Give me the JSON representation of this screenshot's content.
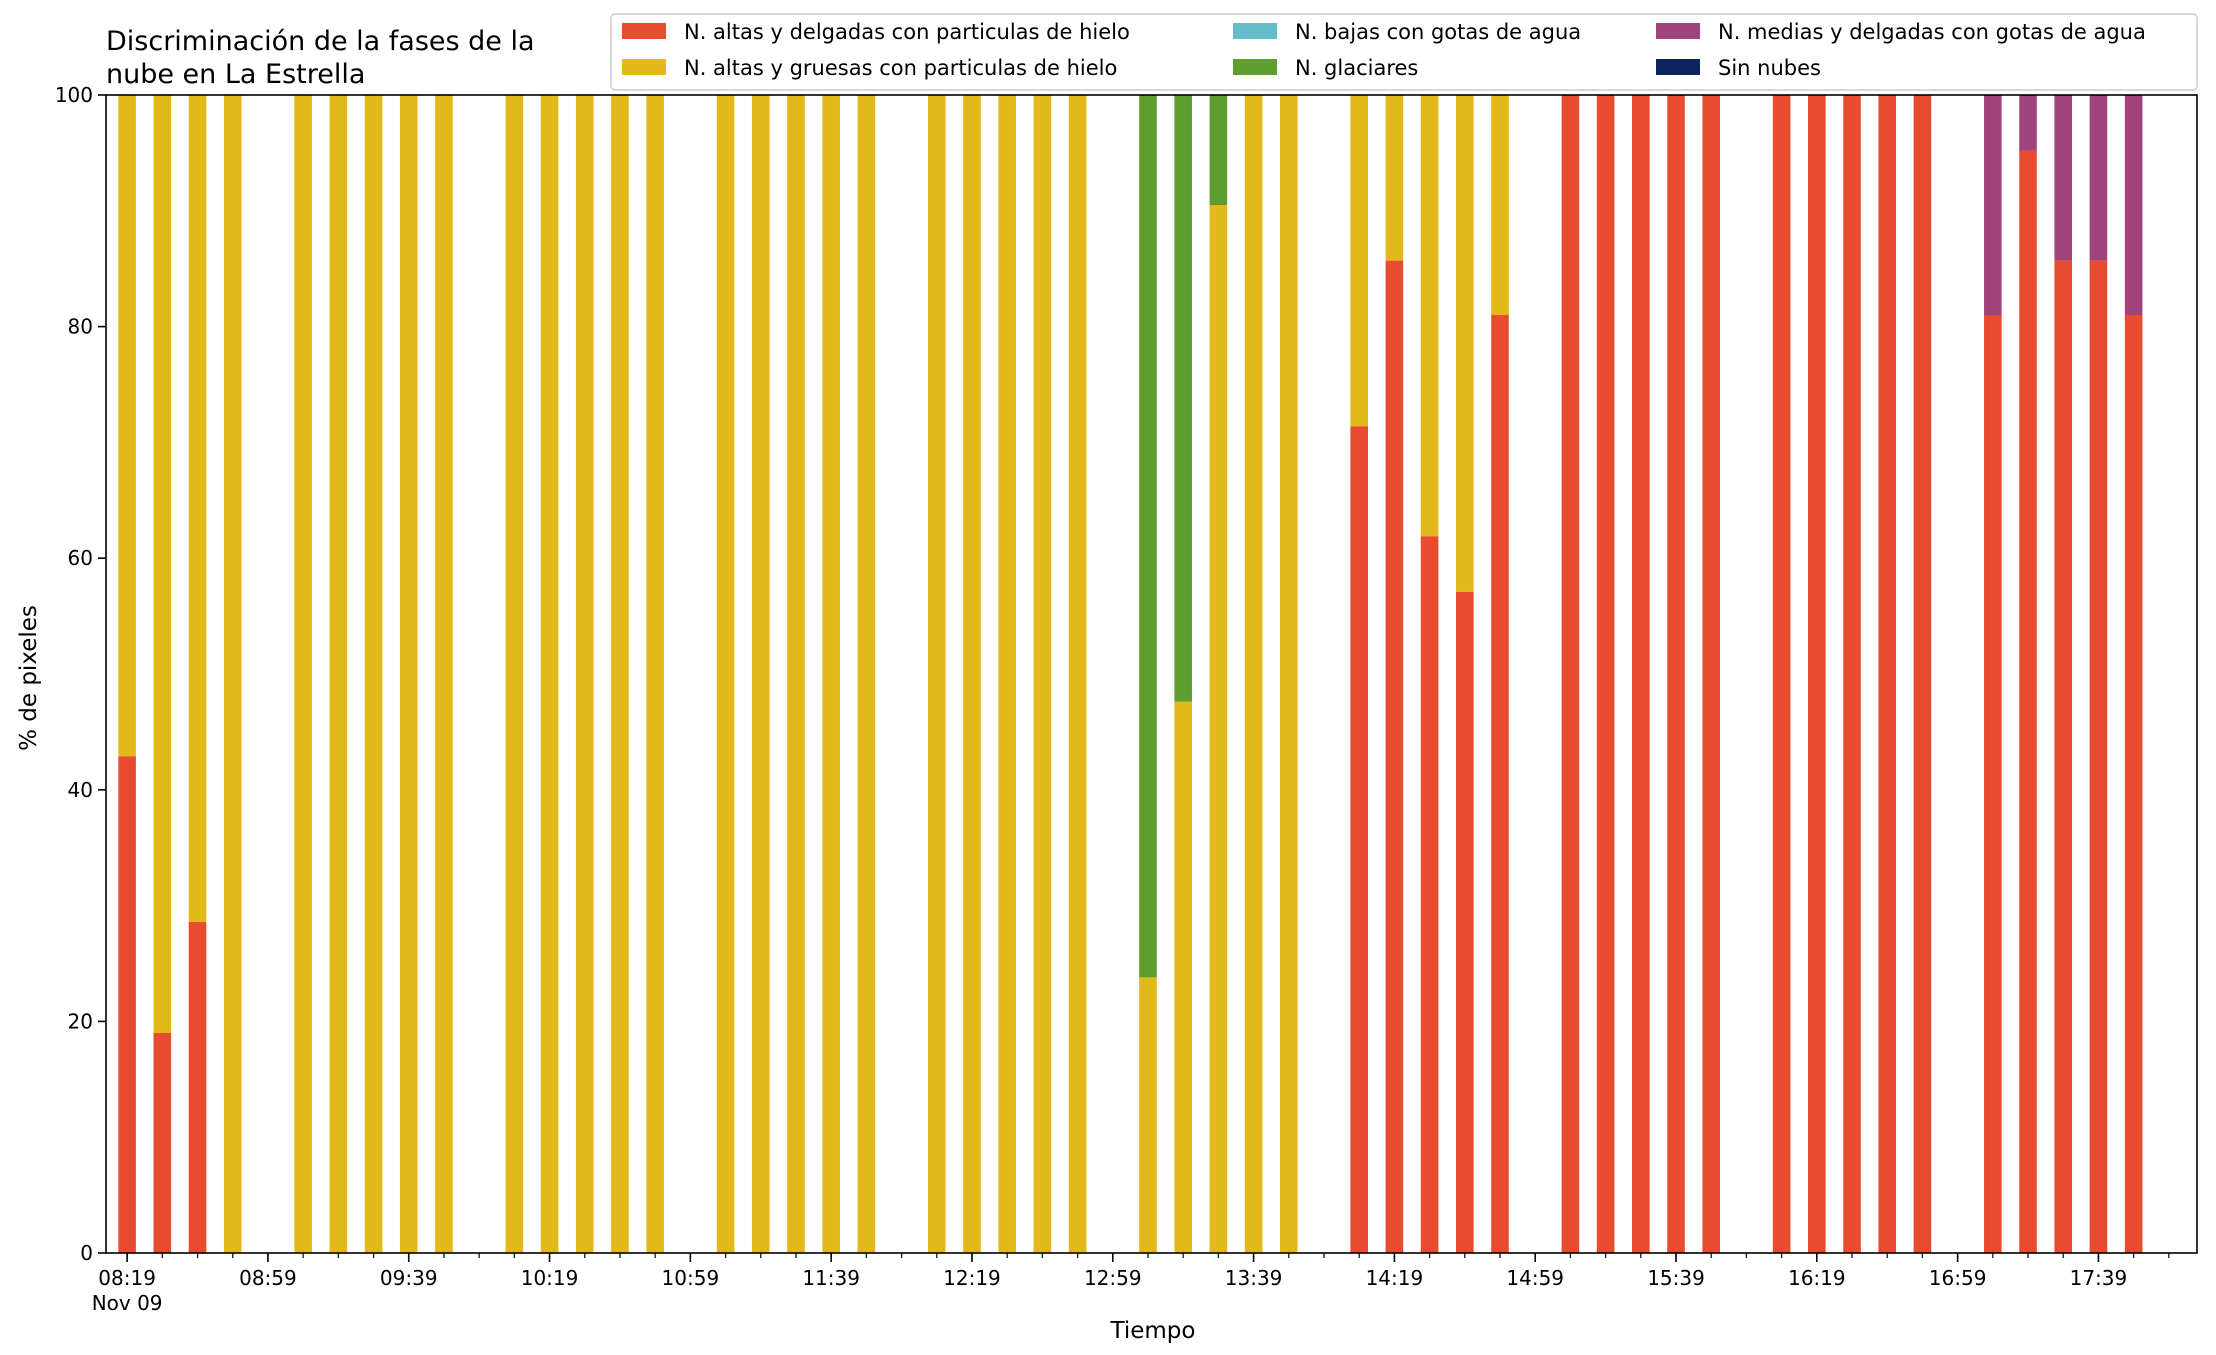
{
  "chart_data": {
    "type": "bar",
    "stacked": true,
    "title_lines": [
      "Discriminación de la fases de la",
      "nube en La Estrella"
    ],
    "xlabel": "Tiempo",
    "ylabel": "% de pixeles",
    "ylim": [
      0,
      100
    ],
    "yticks": [
      0,
      20,
      40,
      60,
      80,
      100
    ],
    "xtick_labels": [
      "08:19",
      "08:59",
      "09:39",
      "10:19",
      "10:59",
      "11:39",
      "12:19",
      "12:59",
      "13:39",
      "14:19",
      "14:59",
      "15:39",
      "16:19",
      "16:59",
      "17:39"
    ],
    "xtick_sublabel": "Nov 09",
    "x_start_time": "08:19",
    "time_step_minutes": 10,
    "grid": false,
    "legend_position": "top-right",
    "series": [
      {
        "name": "N. altas y delgadas con particulas de hielo",
        "color": "#e84c2e"
      },
      {
        "name": "N. altas y gruesas con particulas de hielo",
        "color": "#e3b81a"
      },
      {
        "name": "N. bajas con gotas de agua",
        "color": "#63bcc8"
      },
      {
        "name": "N. glaciares",
        "color": "#5f9e2e"
      },
      {
        "name": "N. medias y delgadas con gotas de agua",
        "color": "#a1437c"
      },
      {
        "name": "Sin nubes",
        "color": "#0b2460"
      }
    ],
    "bars": [
      {
        "time": "08:19",
        "values": [
          42.9,
          57.1,
          0,
          0,
          0,
          0
        ]
      },
      {
        "time": "08:29",
        "values": [
          19.0,
          81.0,
          0,
          0,
          0,
          0
        ]
      },
      {
        "time": "08:39",
        "values": [
          28.6,
          71.4,
          0,
          0,
          0,
          0
        ]
      },
      {
        "time": "08:49",
        "values": [
          0,
          100,
          0,
          0,
          0,
          0
        ]
      },
      {
        "time": "09:09",
        "values": [
          0,
          100,
          0,
          0,
          0,
          0
        ]
      },
      {
        "time": "09:19",
        "values": [
          0,
          100,
          0,
          0,
          0,
          0
        ]
      },
      {
        "time": "09:29",
        "values": [
          0,
          100,
          0,
          0,
          0,
          0
        ]
      },
      {
        "time": "09:39",
        "values": [
          0,
          100,
          0,
          0,
          0,
          0
        ]
      },
      {
        "time": "09:49",
        "values": [
          0,
          100,
          0,
          0,
          0,
          0
        ]
      },
      {
        "time": "10:09",
        "values": [
          0,
          100,
          0,
          0,
          0,
          0
        ]
      },
      {
        "time": "10:19",
        "values": [
          0,
          100,
          0,
          0,
          0,
          0
        ]
      },
      {
        "time": "10:29",
        "values": [
          0,
          100,
          0,
          0,
          0,
          0
        ]
      },
      {
        "time": "10:39",
        "values": [
          0,
          100,
          0,
          0,
          0,
          0
        ]
      },
      {
        "time": "10:49",
        "values": [
          0,
          100,
          0,
          0,
          0,
          0
        ]
      },
      {
        "time": "11:09",
        "values": [
          0,
          100,
          0,
          0,
          0,
          0
        ]
      },
      {
        "time": "11:19",
        "values": [
          0,
          100,
          0,
          0,
          0,
          0
        ]
      },
      {
        "time": "11:29",
        "values": [
          0,
          100,
          0,
          0,
          0,
          0
        ]
      },
      {
        "time": "11:39",
        "values": [
          0,
          100,
          0,
          0,
          0,
          0
        ]
      },
      {
        "time": "11:49",
        "values": [
          0,
          100,
          0,
          0,
          0,
          0
        ]
      },
      {
        "time": "12:09",
        "values": [
          0,
          100,
          0,
          0,
          0,
          0
        ]
      },
      {
        "time": "12:19",
        "values": [
          0,
          100,
          0,
          0,
          0,
          0
        ]
      },
      {
        "time": "12:29",
        "values": [
          0,
          100,
          0,
          0,
          0,
          0
        ]
      },
      {
        "time": "12:39",
        "values": [
          0,
          100,
          0,
          0,
          0,
          0
        ]
      },
      {
        "time": "12:49",
        "values": [
          0,
          100,
          0,
          0,
          0,
          0
        ]
      },
      {
        "time": "13:09",
        "values": [
          0,
          23.8,
          0,
          76.2,
          0,
          0
        ]
      },
      {
        "time": "13:19",
        "values": [
          0,
          47.6,
          0,
          52.4,
          0,
          0
        ]
      },
      {
        "time": "13:29",
        "values": [
          0,
          90.5,
          0,
          9.5,
          0,
          0
        ]
      },
      {
        "time": "13:39",
        "values": [
          0,
          100,
          0,
          0,
          0,
          0
        ]
      },
      {
        "time": "13:49",
        "values": [
          0,
          100,
          0,
          0,
          0,
          0
        ]
      },
      {
        "time": "14:09",
        "values": [
          71.4,
          28.6,
          0,
          0,
          0,
          0
        ]
      },
      {
        "time": "14:19",
        "values": [
          85.7,
          14.3,
          0,
          0,
          0,
          0
        ]
      },
      {
        "time": "14:29",
        "values": [
          61.9,
          38.1,
          0,
          0,
          0,
          0
        ]
      },
      {
        "time": "14:39",
        "values": [
          57.1,
          42.9,
          0,
          0,
          0,
          0
        ]
      },
      {
        "time": "14:49",
        "values": [
          81.0,
          19.0,
          0,
          0,
          0,
          0
        ]
      },
      {
        "time": "15:09",
        "values": [
          100,
          0,
          0,
          0,
          0,
          0
        ]
      },
      {
        "time": "15:19",
        "values": [
          100,
          0,
          0,
          0,
          0,
          0
        ]
      },
      {
        "time": "15:29",
        "values": [
          100,
          0,
          0,
          0,
          0,
          0
        ]
      },
      {
        "time": "15:39",
        "values": [
          100,
          0,
          0,
          0,
          0,
          0
        ]
      },
      {
        "time": "15:49",
        "values": [
          100,
          0,
          0,
          0,
          0,
          0
        ]
      },
      {
        "time": "16:09",
        "values": [
          100,
          0,
          0,
          0,
          0,
          0
        ]
      },
      {
        "time": "16:19",
        "values": [
          100,
          0,
          0,
          0,
          0,
          0
        ]
      },
      {
        "time": "16:29",
        "values": [
          100,
          0,
          0,
          0,
          0,
          0
        ]
      },
      {
        "time": "16:39",
        "values": [
          100,
          0,
          0,
          0,
          0,
          0
        ]
      },
      {
        "time": "16:49",
        "values": [
          100,
          0,
          0,
          0,
          0,
          0
        ]
      },
      {
        "time": "17:09",
        "values": [
          81.0,
          0,
          0,
          0,
          19.0,
          0
        ]
      },
      {
        "time": "17:19",
        "values": [
          95.2,
          0,
          0,
          0,
          4.8,
          0
        ]
      },
      {
        "time": "17:29",
        "values": [
          85.7,
          0,
          0,
          0,
          14.3,
          0
        ]
      },
      {
        "time": "17:39",
        "values": [
          85.7,
          0,
          0,
          0,
          14.3,
          0
        ]
      },
      {
        "time": "17:49",
        "values": [
          81.0,
          0,
          0,
          0,
          19.0,
          0
        ]
      }
    ]
  }
}
